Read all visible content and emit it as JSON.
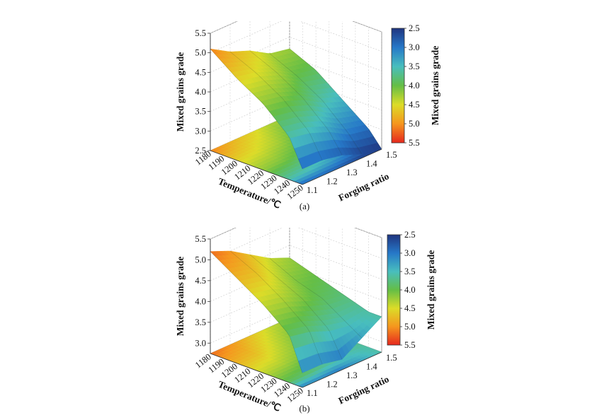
{
  "chart_data": [
    {
      "type": "surface3d",
      "caption": "(a)",
      "zlabel": "Mixed grains grade",
      "xlabel": "Temperature/℃",
      "ylabel": "Forging ratio",
      "x_ticks": [
        "1180",
        "1190",
        "1200",
        "1210",
        "1220",
        "1230",
        "1240",
        "1250"
      ],
      "y_ticks": [
        "1.1",
        "1.2",
        "1.3",
        "1.4",
        "1.5"
      ],
      "z_ticks": [
        "2.5",
        "3.0",
        "3.5",
        "4.0",
        "4.5",
        "5.0",
        "5.5"
      ],
      "zlim": [
        2.5,
        5.5
      ],
      "colorbar": {
        "label": "Mixed grains grade",
        "ticks": [
          "2.5",
          "3.0",
          "3.5",
          "4.0",
          "4.5",
          "5.0",
          "5.5"
        ],
        "reversed": true
      },
      "x": [
        1180,
        1200,
        1220,
        1240,
        1250
      ],
      "y": [
        1.1,
        1.2,
        1.3,
        1.4,
        1.5
      ],
      "z": [
        [
          5.1,
          4.6,
          4.2,
          3.6,
          2.9
        ],
        [
          4.8,
          4.5,
          4.1,
          3.5,
          2.9
        ],
        [
          4.6,
          4.3,
          3.9,
          3.3,
          2.8
        ],
        [
          4.3,
          4.0,
          3.6,
          3.0,
          2.6
        ],
        [
          4.2,
          3.9,
          3.4,
          2.9,
          2.5
        ]
      ]
    },
    {
      "type": "surface3d",
      "caption": "(b)",
      "zlabel": "Mixed grains grade",
      "xlabel": "Temperature/℃",
      "ylabel": "Forging ratio",
      "x_ticks": [
        "1180",
        "1190",
        "1200",
        "1210",
        "1220",
        "1230",
        "1240",
        "1250"
      ],
      "y_ticks": [
        "1.1",
        "1.2",
        "1.3",
        "1.4",
        "1.5"
      ],
      "z_ticks": [
        "3.0",
        "3.5",
        "4.0",
        "4.5",
        "5.0",
        "5.5"
      ],
      "zlim": [
        2.75,
        5.5
      ],
      "colorbar": {
        "label": "Mixed grains grade",
        "ticks": [
          "2.5",
          "3.0",
          "3.5",
          "4.0",
          "4.5",
          "5.0",
          "5.5"
        ],
        "reversed": true
      },
      "x": [
        1180,
        1200,
        1220,
        1240,
        1250
      ],
      "y": [
        1.1,
        1.2,
        1.3,
        1.4,
        1.5
      ],
      "z": [
        [
          5.2,
          4.8,
          4.4,
          3.9,
          3.1
        ],
        [
          5.0,
          4.7,
          4.3,
          3.8,
          3.1
        ],
        [
          4.7,
          4.4,
          4.1,
          3.6,
          3.0
        ],
        [
          4.4,
          4.1,
          3.9,
          3.5,
          3.3
        ],
        [
          4.2,
          4.0,
          3.8,
          3.6,
          3.6
        ]
      ]
    }
  ]
}
